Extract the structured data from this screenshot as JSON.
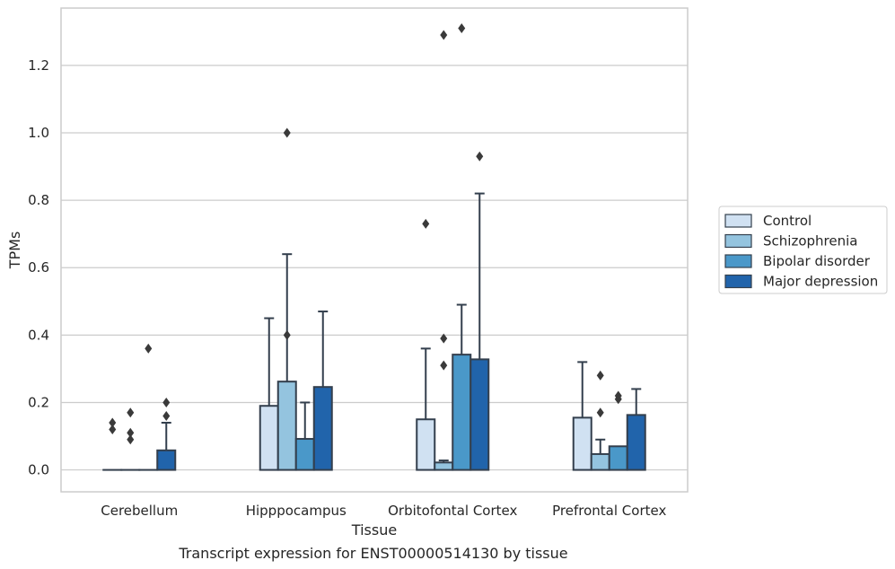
{
  "chart_data": {
    "type": "bar",
    "title": "",
    "caption": "Transcript expression for ENST00000514130 by tissue",
    "xlabel": "Tissue",
    "ylabel": "TPMs",
    "ylim": [
      -0.065,
      1.37
    ],
    "yticks": [
      0.0,
      0.2,
      0.4,
      0.6,
      0.8,
      1.0,
      1.2
    ],
    "ytick_labels": [
      "0.0",
      "0.2",
      "0.4",
      "0.6",
      "0.8",
      "1.0",
      "1.2"
    ],
    "grid": true,
    "legend_position": "right",
    "categories": [
      "Cerebellum",
      "Hipppocampus",
      "Orbitofontal Cortex",
      "Prefrontal Cortex"
    ],
    "series": [
      {
        "name": "Control",
        "color": "#d0e1f2",
        "values": [
          0.0,
          0.19,
          0.15,
          0.155
        ],
        "whisker_high": [
          0.0,
          0.45,
          0.36,
          0.32
        ],
        "whisker_low": [
          0.0,
          0.0,
          0.0,
          0.0
        ],
        "outliers": [
          [
            0.12,
            0.14
          ],
          [],
          [
            0.73
          ],
          []
        ]
      },
      {
        "name": "Schizophrenia",
        "color": "#94c4df",
        "values": [
          0.0,
          0.262,
          0.022,
          0.047
        ],
        "whisker_high": [
          0.0,
          0.64,
          0.028,
          0.09
        ],
        "whisker_low": [
          0.0,
          0.0,
          0.0,
          0.0
        ],
        "outliers": [
          [
            0.09,
            0.11,
            0.17
          ],
          [
            1.0,
            0.4
          ],
          [
            0.31,
            0.39,
            1.29
          ],
          [
            0.17,
            0.28
          ]
        ]
      },
      {
        "name": "Bipolar disorder",
        "color": "#4a98c9",
        "values": [
          0.0,
          0.092,
          0.342,
          0.07
        ],
        "whisker_high": [
          0.0,
          0.2,
          0.49,
          0.07
        ],
        "whisker_low": [
          0.0,
          0.0,
          0.0,
          0.0
        ],
        "outliers": [
          [
            0.36
          ],
          [],
          [
            1.31
          ],
          [
            0.21,
            0.22
          ]
        ]
      },
      {
        "name": "Major depression",
        "color": "#2164ab",
        "values": [
          0.058,
          0.246,
          0.328,
          0.163
        ],
        "whisker_high": [
          0.14,
          0.47,
          0.82,
          0.24
        ],
        "whisker_low": [
          0.0,
          0.0,
          0.0,
          0.0
        ],
        "outliers": [
          [
            0.16,
            0.2
          ],
          [],
          [
            0.93
          ],
          []
        ]
      }
    ]
  },
  "colors": {
    "grid": "#cccccc",
    "frame": "#cccccc",
    "edge": "#333f4d",
    "marker": "#3a3a3a"
  }
}
